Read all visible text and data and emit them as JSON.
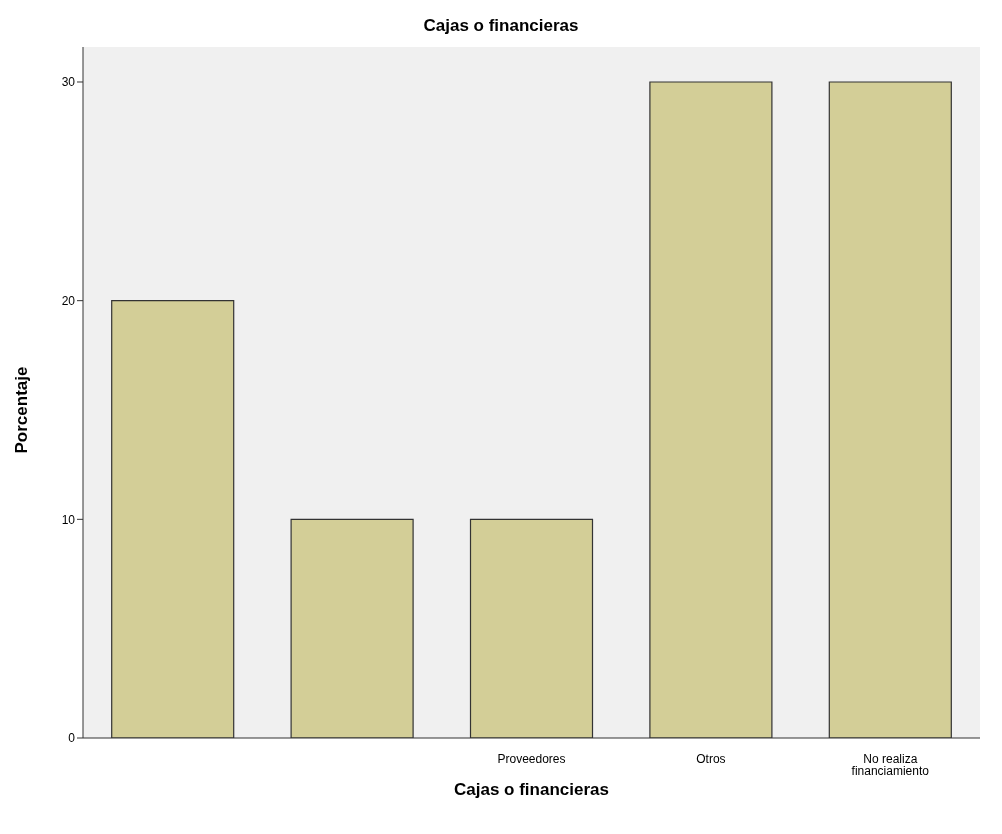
{
  "chart_data": {
    "type": "bar",
    "title": "Cajas o financieras",
    "xlabel": "Cajas o financieras",
    "ylabel": "Porcentaje",
    "categories": [
      null,
      null,
      "Proveedores",
      "Otros",
      "No realiza financiamiento"
    ],
    "values": [
      20,
      10,
      10,
      30,
      30
    ],
    "color": "#d3ce97",
    "ylim": [
      0,
      31.6
    ],
    "yticks": [
      0,
      10,
      20,
      30
    ],
    "grid": false,
    "legend": false
  }
}
